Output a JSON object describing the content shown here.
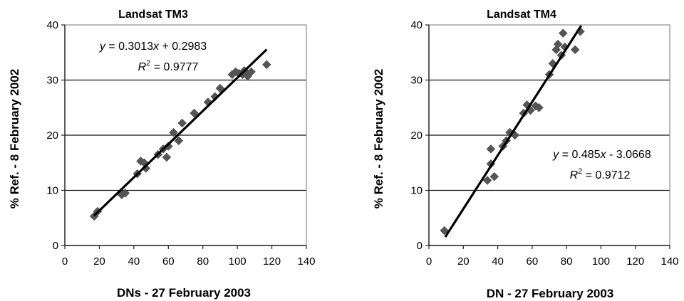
{
  "chart_data": [
    {
      "type": "scatter",
      "title": "Landsat TM3",
      "xlabel": "DNs - 27 February 2003",
      "ylabel": "% Ref. - 8 February 2002",
      "xlim": [
        0,
        140
      ],
      "ylim": [
        0,
        40
      ],
      "xticks": [
        "0",
        "20",
        "40",
        "60",
        "80",
        "100",
        "120",
        "140"
      ],
      "yticks": [
        "0",
        "10",
        "20",
        "30",
        "40"
      ],
      "grid": "horizontal",
      "equation": "y = 0.3013x + 0.2983",
      "r2_label": "R",
      "r2_sup": "2",
      "r2_value": " = 0.9777",
      "trendline": {
        "slope": 0.3013,
        "intercept": 0.2983,
        "x_range": [
          17,
          117
        ]
      },
      "points": [
        [
          17,
          5.3
        ],
        [
          19,
          6.2
        ],
        [
          33,
          9.2
        ],
        [
          35,
          9.5
        ],
        [
          42,
          13.0
        ],
        [
          44,
          15.3
        ],
        [
          46,
          15.0
        ],
        [
          47,
          14.0
        ],
        [
          54,
          16.5
        ],
        [
          57,
          17.5
        ],
        [
          59,
          16.0
        ],
        [
          60,
          18.0
        ],
        [
          63,
          20.5
        ],
        [
          66,
          19.0
        ],
        [
          68,
          22.2
        ],
        [
          75,
          24.0
        ],
        [
          83,
          26.0
        ],
        [
          87,
          27.0
        ],
        [
          90,
          28.5
        ],
        [
          97,
          31.0
        ],
        [
          99,
          31.5
        ],
        [
          101,
          31.2
        ],
        [
          103,
          31.0
        ],
        [
          104,
          31.7
        ],
        [
          106,
          30.7
        ],
        [
          108,
          31.5
        ],
        [
          117,
          32.8
        ]
      ]
    },
    {
      "type": "scatter",
      "title": "Landsat TM4",
      "xlabel": "DN - 27 February 2003",
      "ylabel": "% Ref. - 8 February 2002",
      "xlim": [
        0,
        140
      ],
      "ylim": [
        0,
        40
      ],
      "xticks": [
        "0",
        "20",
        "40",
        "60",
        "80",
        "100",
        "120",
        "140"
      ],
      "yticks": [
        "0",
        "10",
        "20",
        "30",
        "40"
      ],
      "grid": "horizontal",
      "equation": "y = 0.485x - 3.0668",
      "r2_label": "R",
      "r2_sup": "2",
      "r2_value": " = 0.9712",
      "trendline": {
        "slope": 0.485,
        "intercept": -3.0668,
        "x_range": [
          9.5,
          88.5
        ]
      },
      "points": [
        [
          9,
          2.7
        ],
        [
          34,
          11.8
        ],
        [
          36,
          17.5
        ],
        [
          36,
          14.8
        ],
        [
          38,
          12.5
        ],
        [
          43,
          18.0
        ],
        [
          45,
          19.0
        ],
        [
          47,
          20.5
        ],
        [
          50,
          20.0
        ],
        [
          55,
          24.0
        ],
        [
          57,
          25.5
        ],
        [
          59,
          24.5
        ],
        [
          62,
          25.3
        ],
        [
          64,
          25.0
        ],
        [
          70,
          31.0
        ],
        [
          72,
          33.0
        ],
        [
          74,
          35.5
        ],
        [
          75,
          36.5
        ],
        [
          77,
          34.5
        ],
        [
          78,
          38.5
        ],
        [
          79,
          36.0
        ],
        [
          85,
          35.5
        ],
        [
          88,
          38.8
        ]
      ]
    }
  ]
}
